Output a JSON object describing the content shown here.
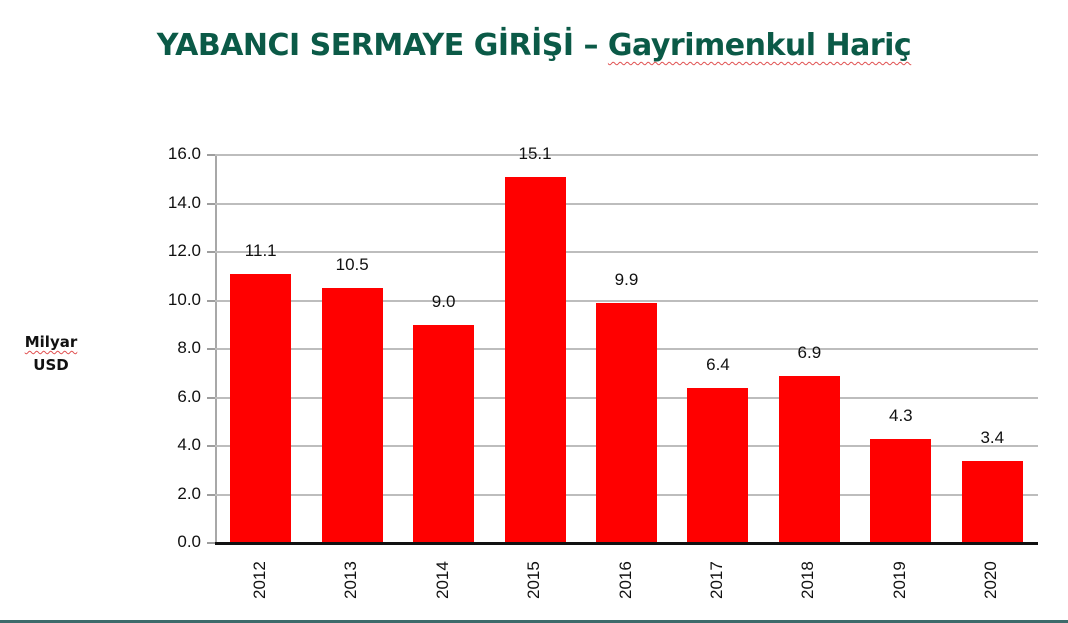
{
  "title": {
    "main": "YABANCI SERMAYE GİRİŞİ – ",
    "sub": "Gayrimenkul Hariç"
  },
  "y_axis_label": {
    "line1": "Milyar",
    "line2": "USD"
  },
  "colors": {
    "title": "#0b5a47",
    "bar": "#ff0000",
    "grid": "#bdbdbd",
    "footer": "#3d6b6b"
  },
  "chart_data": {
    "type": "bar",
    "title": "YABANCI SERMAYE GİRİŞİ – Gayrimenkul Hariç",
    "xlabel": "",
    "ylabel": "Milyar USD",
    "categories": [
      "2012",
      "2013",
      "2014",
      "2015",
      "2016",
      "2017",
      "2018",
      "2019",
      "2020"
    ],
    "values": [
      11.1,
      10.5,
      9.0,
      15.1,
      9.9,
      6.4,
      6.9,
      4.3,
      3.4
    ],
    "value_labels": [
      "11.1",
      "10.5",
      "9.0",
      "15.1",
      "9.9",
      "6.4",
      "6.9",
      "4.3",
      "3.4"
    ],
    "ylim": [
      0,
      16
    ],
    "yticks": [
      "0.0",
      "2.0",
      "4.0",
      "6.0",
      "8.0",
      "10.0",
      "12.0",
      "14.0",
      "16.0"
    ],
    "grid": true,
    "legend": "none",
    "x_tick_rotation": -90
  }
}
